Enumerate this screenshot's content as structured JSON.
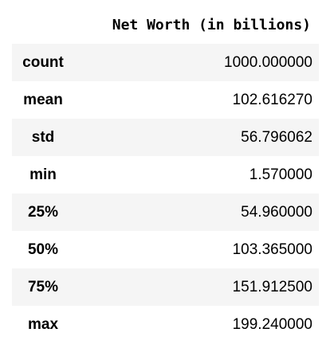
{
  "table": {
    "column_header": "Net Worth (in billions)",
    "rows": [
      {
        "label": "count",
        "value": "1000.000000"
      },
      {
        "label": "mean",
        "value": "102.616270"
      },
      {
        "label": "std",
        "value": "56.796062"
      },
      {
        "label": "min",
        "value": "1.570000"
      },
      {
        "label": "25%",
        "value": "54.960000"
      },
      {
        "label": "50%",
        "value": "103.365000"
      },
      {
        "label": "75%",
        "value": "151.912500"
      },
      {
        "label": "max",
        "value": "199.240000"
      }
    ]
  }
}
